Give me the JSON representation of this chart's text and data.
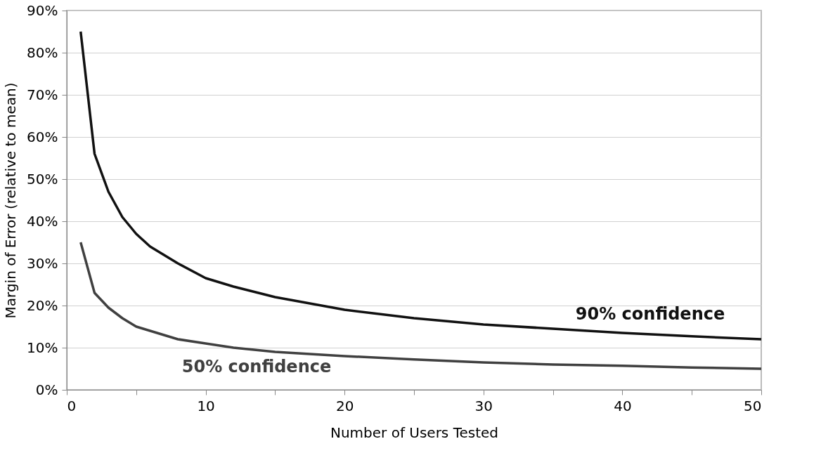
{
  "chart_data": {
    "type": "line",
    "xlabel": "Number of Users Tested",
    "ylabel": "Margin of Error (relative to mean)",
    "x": [
      1,
      2,
      3,
      4,
      5,
      6,
      7,
      8,
      10,
      12,
      15,
      20,
      25,
      30,
      35,
      40,
      45,
      50
    ],
    "series": [
      {
        "name": "90% confidence",
        "color": "#111111",
        "values": [
          85,
          56,
          47,
          41,
          37,
          34,
          32,
          30,
          26.5,
          24.5,
          22,
          19,
          17,
          15.5,
          14.5,
          13.5,
          12.7,
          12
        ]
      },
      {
        "name": "50% confidence",
        "color": "#404040",
        "values": [
          35,
          23,
          19.5,
          17,
          15,
          14,
          13,
          12,
          11,
          10,
          9,
          8,
          7.2,
          6.5,
          6,
          5.7,
          5.3,
          5
        ]
      }
    ],
    "xlim": [
      0,
      50
    ],
    "xticks": [
      0,
      {
        "value": 5,
        "label": null
      },
      10,
      {
        "value": 15,
        "label": null
      },
      20,
      {
        "value": 25,
        "label": null
      },
      30,
      {
        "value": 35,
        "label": null
      },
      40,
      {
        "value": 45,
        "label": null
      },
      50
    ],
    "ylim": [
      0,
      90
    ],
    "yticks": [
      {
        "value": 0,
        "label": "0%"
      },
      {
        "value": 10,
        "label": "10%"
      },
      {
        "value": 20,
        "label": "20%"
      },
      {
        "value": 30,
        "label": "30%"
      },
      {
        "value": 40,
        "label": "40%"
      },
      {
        "value": 50,
        "label": "50%"
      },
      {
        "value": 60,
        "label": "60%"
      },
      {
        "value": 70,
        "label": "70%"
      },
      {
        "value": 80,
        "label": "80%"
      },
      {
        "value": 90,
        "label": "90%"
      }
    ],
    "grid": "y",
    "legend": false,
    "marker": "none",
    "line_style": "solid"
  }
}
